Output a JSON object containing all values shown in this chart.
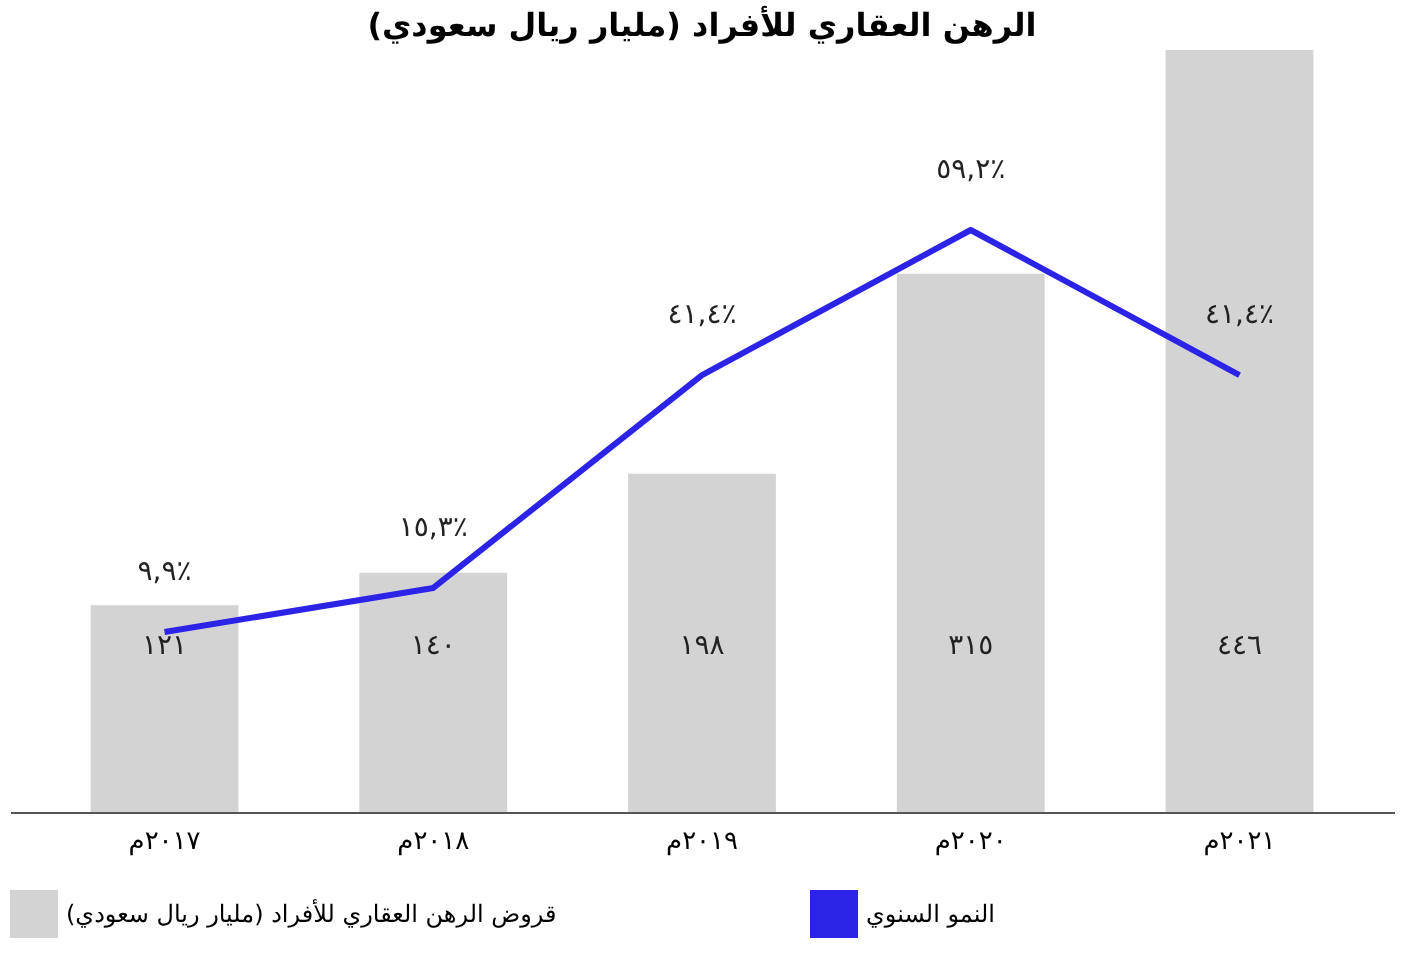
{
  "chart_data": {
    "type": "bar",
    "title": "الرهن العقاري للأفراد (مليار ريال سعودي)",
    "categories": [
      "٢٠١٧م",
      "٢٠١٨م",
      "٢٠١٩م",
      "٢٠٢٠م",
      "٢٠٢١م"
    ],
    "series": [
      {
        "name": "قروض الرهن العقاري للأفراد (مليار ريال سعودي)",
        "color": "#d3d3d3",
        "values": [
          121,
          140,
          198,
          315,
          446
        ],
        "value_labels": [
          "١٢١",
          "١٤٠",
          "١٩٨",
          "٣١٥",
          "٤٤٦"
        ]
      },
      {
        "name": "النمو السنوي",
        "type": "line",
        "axis": "y2",
        "color": "#2b24e6",
        "values": [
          9.9,
          15.3,
          41.4,
          59.2,
          41.4
        ],
        "value_labels": [
          "٩,٩٪",
          "١٥,٣٪",
          "٤١,٤٪",
          "٥٩,٢٪",
          "٤١,٤٪"
        ]
      }
    ],
    "legend": "bottom",
    "grid": false
  }
}
